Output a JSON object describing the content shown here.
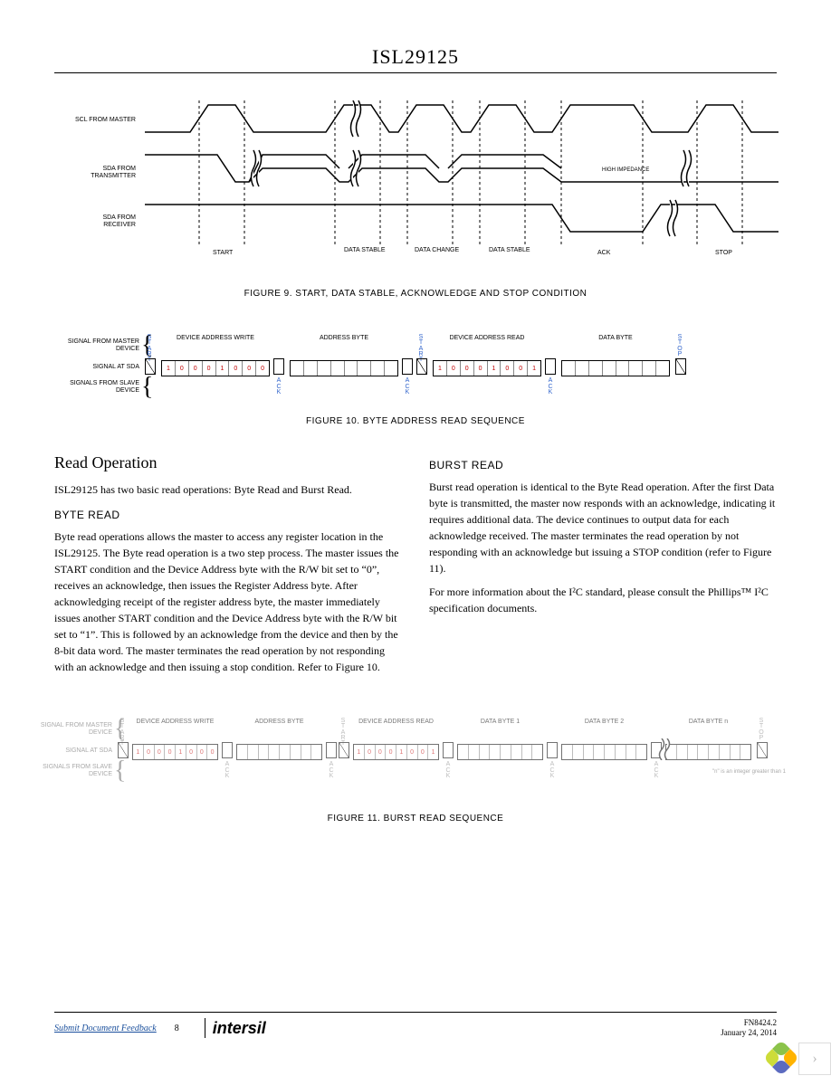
{
  "header": {
    "title": "ISL29125"
  },
  "fig9": {
    "caption": "FIGURE 9. START, DATA STABLE, ACKNOWLEDGE AND STOP CONDITION",
    "row_labels": [
      "SCL FROM MASTER",
      "SDA FROM TRANSMITTER",
      "SDA FROM RECEIVER"
    ],
    "bottom_labels": [
      "START",
      "DATA STABLE",
      "DATA CHANGE",
      "DATA STABLE",
      "ACK",
      "STOP"
    ],
    "inline_labels": {
      "high_impedance": "HIGH IMPEDANCE"
    },
    "colors": {
      "stroke": "#000000",
      "dash": "#000000",
      "bg": "#ffffff"
    }
  },
  "fig10": {
    "caption": "FIGURE 10. BYTE ADDRESS READ SEQUENCE",
    "row_labels": [
      "SIGNAL FROM MASTER DEVICE",
      "SIGNAL AT SDA",
      "SIGNALS FROM SLAVE DEVICE"
    ],
    "blocks": [
      {
        "title": "DEVICE ADDRESS WRITE",
        "bits": [
          "1",
          "0",
          "0",
          "0",
          "1",
          "0",
          "0",
          "0"
        ]
      },
      {
        "title": "ADDRESS BYTE",
        "bits": [
          "",
          "",
          "",
          "",
          "",
          "",
          "",
          ""
        ]
      },
      {
        "title": "DEVICE ADDRESS READ",
        "bits": [
          "1",
          "0",
          "0",
          "0",
          "1",
          "0",
          "0",
          "1"
        ]
      },
      {
        "title": "DATA BYTE",
        "bits": [
          "",
          "",
          "",
          "",
          "",
          "",
          "",
          ""
        ]
      }
    ],
    "start_label": "START",
    "stop_label": "STOP",
    "ack_label": "ACK",
    "colors": {
      "bit_text": "#c00000",
      "vert_text": "#3366cc"
    }
  },
  "fig11": {
    "caption": "FIGURE 11. BURST READ SEQUENCE",
    "row_labels": [
      "SIGNAL FROM MASTER DEVICE",
      "SIGNAL AT SDA",
      "SIGNALS FROM SLAVE DEVICE"
    ],
    "blocks": [
      {
        "title": "DEVICE ADDRESS WRITE",
        "bits": [
          "1",
          "0",
          "0",
          "0",
          "1",
          "0",
          "0",
          "0"
        ]
      },
      {
        "title": "ADDRESS BYTE",
        "bits": [
          "",
          "",
          "",
          "",
          "",
          "",
          "",
          ""
        ]
      },
      {
        "title": "DEVICE ADDRESS READ",
        "bits": [
          "1",
          "0",
          "0",
          "0",
          "1",
          "0",
          "0",
          "1"
        ]
      },
      {
        "title": "DATA BYTE 1",
        "bits": [
          "",
          "",
          "",
          "",
          "",
          "",
          "",
          ""
        ]
      },
      {
        "title": "DATA BYTE 2",
        "bits": [
          "",
          "",
          "",
          "",
          "",
          "",
          "",
          ""
        ]
      },
      {
        "title": "DATA BYTE n",
        "bits": [
          "",
          "",
          "",
          "",
          "",
          "",
          "",
          ""
        ]
      }
    ],
    "note": "\"n\" is an integer greater than 1",
    "start_label": "START",
    "stop_label": "STOP",
    "ack_label": "ACK"
  },
  "text": {
    "read_op_h": "Read Operation",
    "read_op_p": "ISL29125 has two basic read operations: Byte Read and Burst Read.",
    "byte_read_h": "BYTE READ",
    "byte_read_p": "Byte read operations allows the master to access any register location in the ISL29125. The Byte read operation is a two step process. The master issues the START condition and the Device Address byte with the R/W bit set to “0”, receives an acknowledge, then issues the Register Address byte. After acknowledging receipt of the register address byte, the master immediately issues another START condition and the Device Address byte with the R/W bit set to “1”. This is followed by an acknowledge from the device and then by the 8-bit data word. The master terminates the read operation by not responding with an acknowledge and then issuing a stop condition. Refer to Figure 10.",
    "burst_read_h": "BURST READ",
    "burst_read_p1": "Burst read operation is identical to the Byte Read operation. After the first Data byte is transmitted, the master now responds with an acknowledge, indicating it requires additional data. The device continues to output data for each acknowledge received. The master terminates the read operation by not responding with an acknowledge but issuing a STOP condition (refer to Figure 11).",
    "burst_read_p2": "For more information about the I²C standard, please consult the Phillips™ I²C specification documents."
  },
  "footer": {
    "left_link": "Submit Document Feedback",
    "page": "8",
    "brand": "intersil",
    "doc": "FN8424.2",
    "date": "January 24, 2014"
  }
}
